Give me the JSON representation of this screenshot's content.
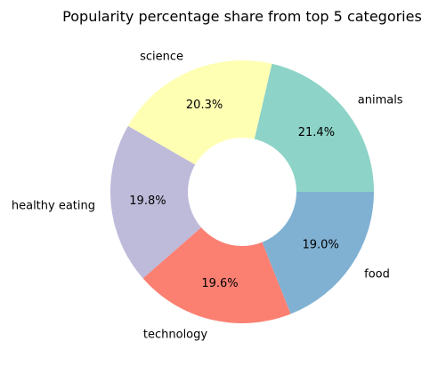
{
  "chart_data": {
    "type": "pie",
    "title": "Popularity percentage share from top 5 categories",
    "donut": true,
    "start_angle_deg": 0,
    "direction": "counterclockwise",
    "categories": [
      "animals",
      "science",
      "healthy eating",
      "technology",
      "food"
    ],
    "values": [
      21.4,
      20.3,
      19.8,
      19.6,
      19.0
    ],
    "value_labels": [
      "21.4%",
      "20.3%",
      "19.8%",
      "19.6%",
      "19.0%"
    ],
    "colors": [
      "#8dd3c7",
      "#ffffb3",
      "#bebada",
      "#fb8072",
      "#80b1d3"
    ]
  }
}
